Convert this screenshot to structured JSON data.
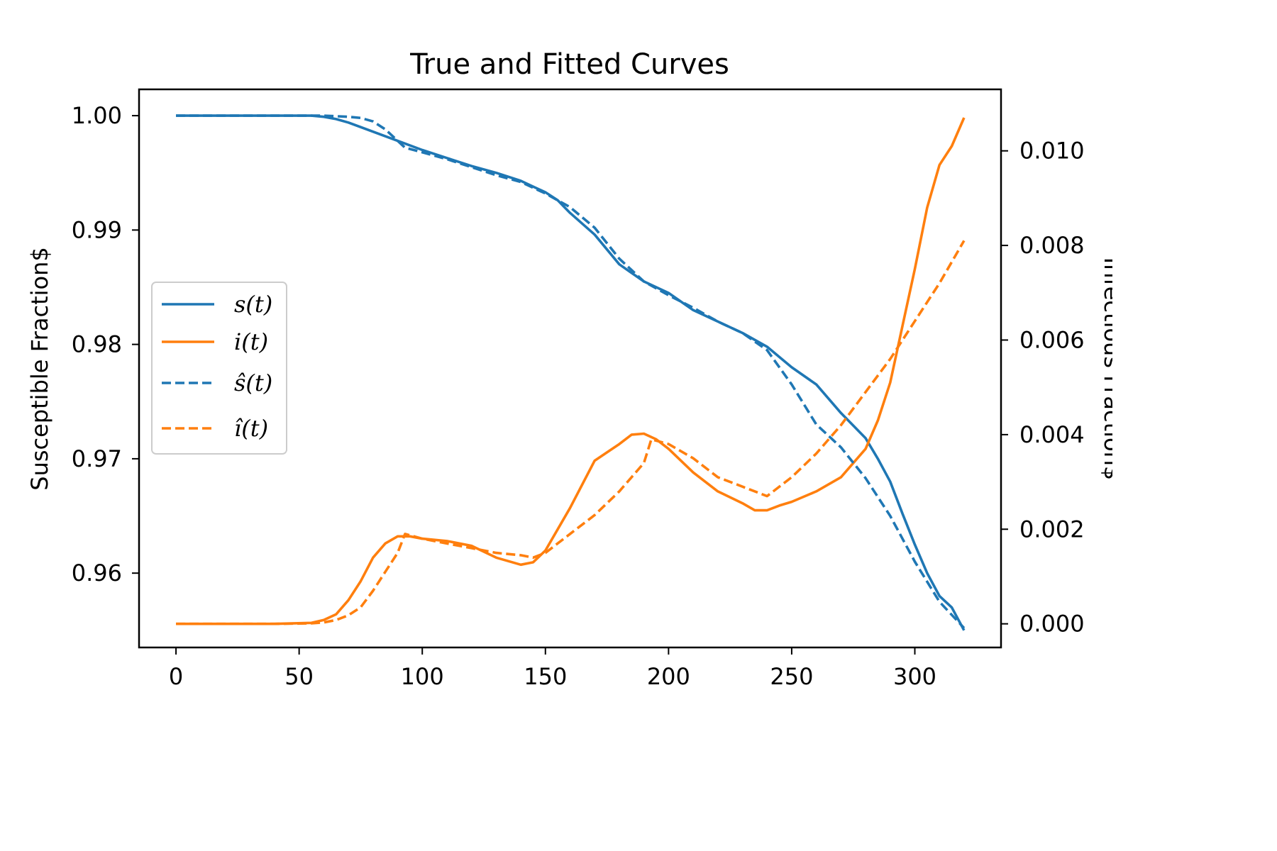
{
  "chart_data": {
    "type": "line",
    "title": "True and Fitted Curves",
    "xlabel": "",
    "ylabel_left": "Susceptible Fraction$",
    "ylabel_right": "Infectious Fraction$",
    "xlim": [
      -15,
      335
    ],
    "ylim_left": [
      0.9535,
      1.0023
    ],
    "ylim_right": [
      -0.0005,
      0.0113
    ],
    "x_ticks": [
      0,
      50,
      100,
      150,
      200,
      250,
      300
    ],
    "y_left_ticks": [
      0.96,
      0.97,
      0.98,
      0.99,
      1.0
    ],
    "y_left_tick_labels": [
      "0.96",
      "0.97",
      "0.98",
      "0.99",
      "1.00"
    ],
    "y_right_ticks": [
      0.0,
      0.002,
      0.004,
      0.006,
      0.008,
      0.01
    ],
    "y_right_tick_labels": [
      "0.000",
      "0.002",
      "0.004",
      "0.006",
      "0.008",
      "0.010"
    ],
    "grid": false,
    "legend_position": "center-left",
    "colors": {
      "s": "#1f77b4",
      "i": "#ff7f0e"
    },
    "series": [
      {
        "name": "s(t)",
        "axis": "left",
        "style": "solid",
        "color": "#1f77b4",
        "x": [
          0,
          20,
          40,
          55,
          60,
          65,
          70,
          80,
          90,
          100,
          110,
          120,
          130,
          140,
          145,
          150,
          155,
          160,
          170,
          180,
          190,
          200,
          210,
          220,
          230,
          240,
          250,
          260,
          270,
          280,
          285,
          290,
          295,
          300,
          305,
          310,
          315,
          320
        ],
        "y": [
          1.0,
          1.0,
          1.0,
          1.0,
          0.9999,
          0.9997,
          0.9994,
          0.9986,
          0.9978,
          0.997,
          0.9963,
          0.9956,
          0.995,
          0.9943,
          0.9938,
          0.9933,
          0.9926,
          0.9915,
          0.9896,
          0.987,
          0.9855,
          0.9845,
          0.983,
          0.982,
          0.981,
          0.9798,
          0.978,
          0.9765,
          0.974,
          0.9718,
          0.97,
          0.968,
          0.9652,
          0.9625,
          0.96,
          0.958,
          0.957,
          0.955
        ]
      },
      {
        "name": "i(t)",
        "axis": "right",
        "style": "solid",
        "color": "#ff7f0e",
        "x": [
          0,
          20,
          40,
          55,
          60,
          65,
          70,
          75,
          80,
          85,
          90,
          95,
          100,
          110,
          120,
          130,
          140,
          145,
          150,
          160,
          170,
          180,
          185,
          190,
          195,
          200,
          210,
          220,
          230,
          235,
          240,
          245,
          250,
          260,
          270,
          280,
          285,
          290,
          295,
          300,
          305,
          310,
          315,
          320
        ],
        "y": [
          0.0,
          0.0,
          0.0,
          2e-05,
          8e-05,
          0.0002,
          0.0005,
          0.0009,
          0.0014,
          0.0017,
          0.00185,
          0.00185,
          0.0018,
          0.00175,
          0.00165,
          0.0014,
          0.00125,
          0.0013,
          0.00155,
          0.00245,
          0.00345,
          0.0038,
          0.004,
          0.00402,
          0.0039,
          0.0037,
          0.0032,
          0.0028,
          0.00255,
          0.0024,
          0.0024,
          0.0025,
          0.00258,
          0.0028,
          0.0031,
          0.0037,
          0.0043,
          0.0051,
          0.0063,
          0.0075,
          0.0088,
          0.0097,
          0.0101,
          0.0107
        ]
      },
      {
        "name": "ŝ(t)",
        "axis": "left",
        "style": "dashed",
        "color": "#1f77b4",
        "x": [
          0,
          20,
          40,
          55,
          60,
          65,
          70,
          75,
          80,
          85,
          90,
          93,
          100,
          110,
          120,
          130,
          140,
          145,
          150,
          160,
          170,
          180,
          190,
          200,
          210,
          220,
          230,
          240,
          250,
          260,
          270,
          280,
          290,
          300,
          310,
          320
        ],
        "y": [
          1.0,
          1.0,
          1.0,
          1.0,
          1.0,
          0.99995,
          0.9999,
          0.9998,
          0.9995,
          0.9988,
          0.9978,
          0.9972,
          0.9968,
          0.9962,
          0.9955,
          0.9948,
          0.9942,
          0.9937,
          0.9932,
          0.992,
          0.9902,
          0.9875,
          0.9855,
          0.9843,
          0.9832,
          0.982,
          0.981,
          0.9795,
          0.9765,
          0.973,
          0.971,
          0.9683,
          0.965,
          0.961,
          0.9575,
          0.9552
        ]
      },
      {
        "name": "î(t)",
        "axis": "right",
        "style": "dashed",
        "color": "#ff7f0e",
        "x": [
          0,
          20,
          40,
          55,
          60,
          65,
          70,
          75,
          80,
          85,
          90,
          93,
          100,
          110,
          120,
          130,
          140,
          145,
          150,
          160,
          170,
          180,
          190,
          193,
          200,
          210,
          220,
          230,
          240,
          250,
          260,
          270,
          280,
          290,
          300,
          310,
          320
        ],
        "y": [
          0.0,
          0.0,
          0.0,
          1e-05,
          3e-05,
          8e-05,
          0.00018,
          0.00035,
          0.0007,
          0.0011,
          0.0015,
          0.0019,
          0.0018,
          0.0017,
          0.0016,
          0.0015,
          0.00145,
          0.0014,
          0.0015,
          0.0019,
          0.0023,
          0.0028,
          0.0034,
          0.0039,
          0.0038,
          0.0035,
          0.0031,
          0.0029,
          0.0027,
          0.0031,
          0.0036,
          0.0042,
          0.0049,
          0.0056,
          0.0064,
          0.0072,
          0.0081
        ]
      }
    ]
  },
  "legend": [
    {
      "label": "s(t)",
      "color": "#1f77b4",
      "style": "solid"
    },
    {
      "label": "i(t)",
      "color": "#ff7f0e",
      "style": "solid"
    },
    {
      "label": "ŝ(t)",
      "color": "#1f77b4",
      "style": "dashed"
    },
    {
      "label": "î(t)",
      "color": "#ff7f0e",
      "style": "dashed"
    }
  ]
}
